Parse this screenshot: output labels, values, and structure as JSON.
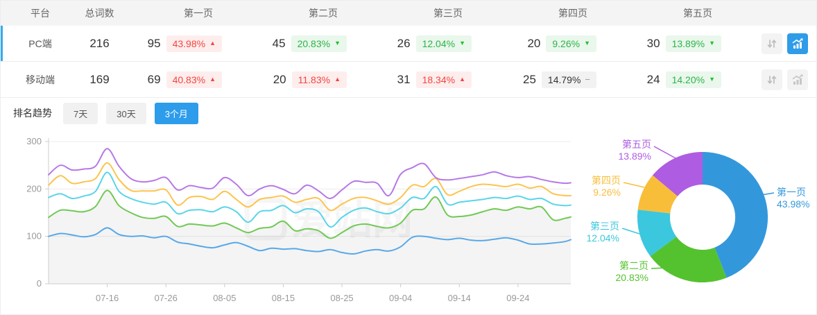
{
  "table": {
    "headers": [
      "平台",
      "总词数",
      "第一页",
      "第二页",
      "第三页",
      "第四页",
      "第五页"
    ],
    "rows": [
      {
        "platform": "PC端",
        "total": "216",
        "selected": true,
        "chart_active": true,
        "pages": [
          {
            "count": "95",
            "pct": "43.98%",
            "dir": "up"
          },
          {
            "count": "45",
            "pct": "20.83%",
            "dir": "down"
          },
          {
            "count": "26",
            "pct": "12.04%",
            "dir": "down"
          },
          {
            "count": "20",
            "pct": "9.26%",
            "dir": "down"
          },
          {
            "count": "30",
            "pct": "13.89%",
            "dir": "down"
          }
        ]
      },
      {
        "platform": "移动端",
        "total": "169",
        "selected": false,
        "chart_active": false,
        "pages": [
          {
            "count": "69",
            "pct": "40.83%",
            "dir": "up"
          },
          {
            "count": "20",
            "pct": "11.83%",
            "dir": "up"
          },
          {
            "count": "31",
            "pct": "18.34%",
            "dir": "up"
          },
          {
            "count": "25",
            "pct": "14.79%",
            "dir": "flat"
          },
          {
            "count": "24",
            "pct": "14.20%",
            "dir": "down"
          }
        ]
      }
    ]
  },
  "trend": {
    "section_label": "排名趋势",
    "tabs": [
      {
        "label": "7天",
        "active": false
      },
      {
        "label": "30天",
        "active": false
      },
      {
        "label": "3个月",
        "active": true
      }
    ]
  },
  "watermark": "爱站网",
  "colors": {
    "accent_blue": "#2d9ceb",
    "row_indicator": "#35aaf0",
    "up_red": "#f5433f",
    "down_green": "#2cb34a",
    "header_bg": "#f4f4f4"
  },
  "chart_data": [
    {
      "type": "line",
      "title": "排名趋势（3个月）",
      "stacked_cumulative": true,
      "grid": true,
      "legend": "none",
      "x_unit": "day_index_from_07-06",
      "x": [
        0,
        2,
        4,
        6,
        8,
        10,
        12,
        14,
        16,
        18,
        20,
        22,
        24,
        26,
        28,
        30,
        32,
        34,
        36,
        38,
        40,
        42,
        44,
        46,
        48,
        50,
        52,
        54,
        56,
        58,
        60,
        62,
        64,
        66,
        68,
        70,
        72,
        74,
        76,
        78,
        80,
        82,
        84,
        86,
        88,
        89
      ],
      "x_tick_days": [
        10,
        20,
        30,
        40,
        50,
        60,
        70,
        80
      ],
      "x_tick_labels": [
        "07-16",
        "07-26",
        "08-05",
        "08-15",
        "08-25",
        "09-04",
        "09-14",
        "09-24"
      ],
      "ylim": [
        0,
        300
      ],
      "y_ticks": [
        0,
        100,
        200,
        300
      ],
      "area_fill_series": "第二页",
      "series": [
        {
          "name": "第一页",
          "color": "#58a8e8",
          "values": [
            100,
            106,
            103,
            99,
            104,
            118,
            104,
            100,
            101,
            97,
            100,
            88,
            84,
            79,
            76,
            82,
            87,
            79,
            70,
            75,
            73,
            74,
            70,
            68,
            72,
            66,
            63,
            69,
            72,
            69,
            78,
            98,
            100,
            96,
            93,
            96,
            92,
            91,
            94,
            97,
            92,
            84,
            84,
            86,
            89,
            93
          ]
        },
        {
          "name": "第二页",
          "color": "#70c955",
          "values": [
            140,
            155,
            154,
            152,
            163,
            197,
            165,
            150,
            140,
            138,
            142,
            121,
            126,
            124,
            122,
            128,
            118,
            108,
            117,
            120,
            132,
            112,
            116,
            112,
            96,
            108,
            122,
            126,
            121,
            118,
            128,
            155,
            158,
            183,
            145,
            142,
            145,
            152,
            158,
            155,
            162,
            158,
            162,
            135,
            138,
            141
          ]
        },
        {
          "name": "第三页",
          "color": "#58d5e8",
          "values": [
            182,
            190,
            180,
            185,
            195,
            235,
            195,
            180,
            172,
            168,
            172,
            148,
            155,
            156,
            152,
            162,
            152,
            130,
            152,
            155,
            165,
            150,
            158,
            152,
            120,
            140,
            155,
            160,
            152,
            148,
            160,
            182,
            180,
            205,
            168,
            172,
            175,
            178,
            182,
            180,
            185,
            178,
            180,
            168,
            165,
            166
          ]
        },
        {
          "name": "第四页",
          "color": "#fcc44e",
          "values": [
            208,
            228,
            212,
            215,
            222,
            255,
            220,
            197,
            196,
            196,
            198,
            166,
            182,
            184,
            178,
            195,
            178,
            162,
            178,
            182,
            185,
            172,
            178,
            180,
            155,
            168,
            180,
            182,
            175,
            168,
            182,
            208,
            205,
            222,
            188,
            195,
            205,
            210,
            208,
            205,
            210,
            202,
            205,
            190,
            186,
            186
          ]
        },
        {
          "name": "第五页",
          "color": "#b678e6",
          "values": [
            230,
            250,
            240,
            242,
            248,
            285,
            248,
            222,
            215,
            218,
            224,
            198,
            207,
            203,
            202,
            224,
            210,
            186,
            200,
            207,
            199,
            190,
            208,
            196,
            180,
            198,
            216,
            214,
            212,
            186,
            231,
            245,
            253,
            224,
            219,
            222,
            226,
            230,
            236,
            228,
            224,
            226,
            220,
            215,
            212,
            213
          ]
        }
      ]
    },
    {
      "type": "pie",
      "donut": true,
      "label_position": "outside",
      "labels": [
        "第一页",
        "第二页",
        "第三页",
        "第四页",
        "第五页"
      ],
      "values": [
        43.98,
        20.83,
        12.04,
        9.26,
        13.89
      ],
      "percent_labels": [
        "43.98%",
        "20.83%",
        "12.04%",
        "9.26%",
        "13.89%"
      ],
      "colors": [
        "#3398db",
        "#54c22f",
        "#3bc7de",
        "#f8be3a",
        "#ae5ce2"
      ]
    }
  ]
}
